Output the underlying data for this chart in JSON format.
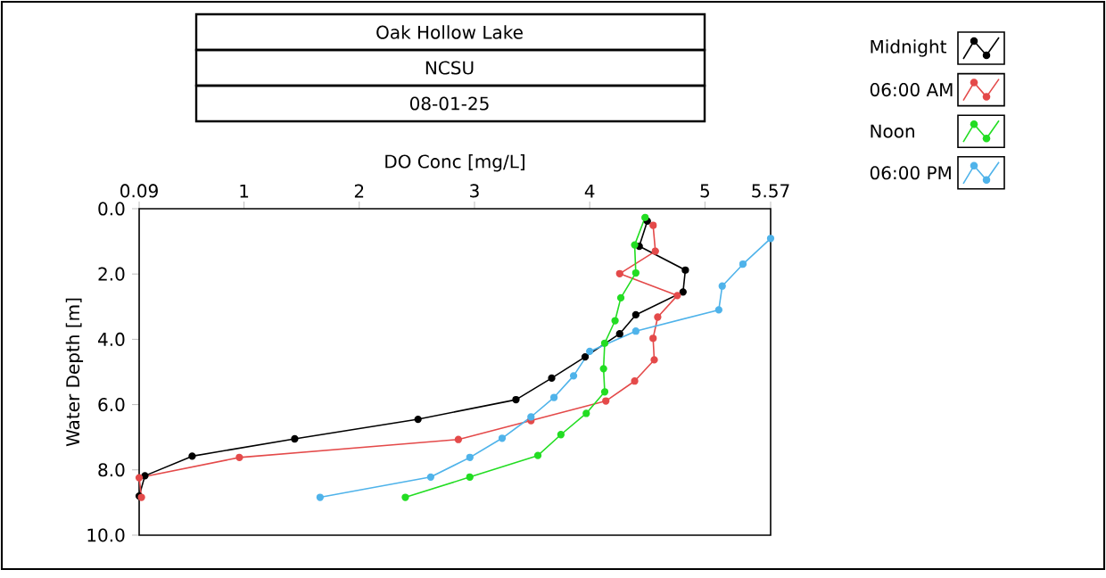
{
  "chart_data": {
    "type": "line",
    "title": "Oak Hollow Lake",
    "subtitle": "NCSU",
    "annotations": [
      "08-01-25"
    ],
    "xlabel": "DO Conc [mg/L]",
    "ylabel": "Water Depth [m]",
    "xlim": [
      0.09,
      5.57
    ],
    "xticks": [
      0.09,
      1,
      2,
      3,
      4,
      5,
      5.57
    ],
    "ylim": [
      10,
      0
    ],
    "yticks": [
      {
        "value": 0,
        "label": "0.0"
      },
      {
        "value": 2,
        "label": "2.0"
      },
      {
        "value": 4,
        "label": "4.0"
      },
      {
        "value": 6,
        "label": "6.0"
      },
      {
        "value": 8,
        "label": "8.0"
      },
      {
        "value": 10,
        "label": "10.0"
      }
    ],
    "legend": "top right",
    "marker": "circle",
    "line_style": "solid",
    "series": [
      {
        "name": "Midnight",
        "color": "#000000",
        "x": [
          4.5,
          4.43,
          4.83,
          4.81,
          4.4,
          4.26,
          3.96,
          3.67,
          3.36,
          2.51,
          1.44,
          0.55,
          0.14,
          0.09
        ],
        "values": [
          0.38,
          1.15,
          1.88,
          2.55,
          3.25,
          3.83,
          4.54,
          5.19,
          5.85,
          6.45,
          7.05,
          7.58,
          8.18,
          8.8
        ]
      },
      {
        "name": "06:00 AM",
        "color": "#e44a4a",
        "x": [
          4.55,
          4.57,
          4.26,
          4.76,
          4.59,
          4.55,
          4.56,
          4.39,
          4.14,
          3.49,
          2.86,
          0.96,
          0.09,
          0.11
        ],
        "values": [
          0.51,
          1.3,
          1.99,
          2.66,
          3.32,
          3.97,
          4.63,
          5.28,
          5.89,
          6.49,
          7.07,
          7.62,
          8.24,
          8.84
        ]
      },
      {
        "name": "Noon",
        "color": "#22dd22",
        "x": [
          4.48,
          4.39,
          4.4,
          4.27,
          4.22,
          4.13,
          4.12,
          4.13,
          3.97,
          3.75,
          3.55,
          2.96,
          2.4
        ],
        "values": [
          0.27,
          1.11,
          1.97,
          2.73,
          3.43,
          4.12,
          4.9,
          5.61,
          6.27,
          6.92,
          7.56,
          8.22,
          8.84
        ]
      },
      {
        "name": "06:00 PM",
        "color": "#4fb3ea",
        "x": [
          5.57,
          5.33,
          5.15,
          5.12,
          4.4,
          4.0,
          3.86,
          3.69,
          3.49,
          3.24,
          2.96,
          2.62,
          1.66
        ],
        "values": [
          0.91,
          1.7,
          2.37,
          3.1,
          3.75,
          4.37,
          5.12,
          5.78,
          6.38,
          7.03,
          7.62,
          8.22,
          8.84
        ]
      }
    ]
  }
}
